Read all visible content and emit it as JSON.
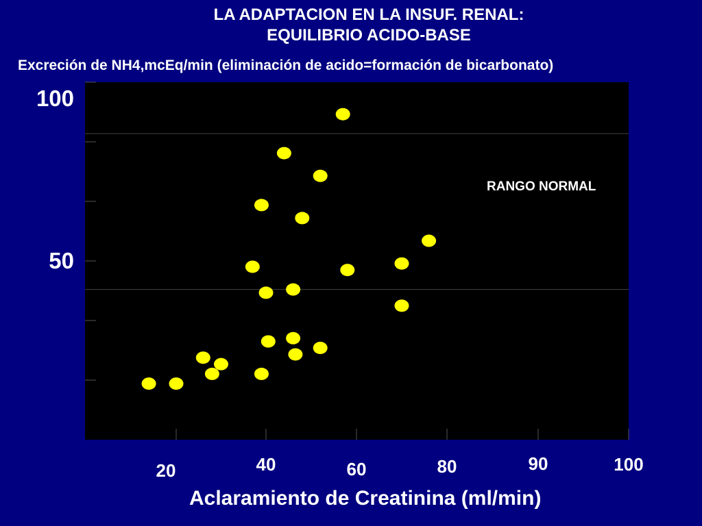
{
  "title_line1": "LA ADAPTACION EN LA INSUF. RENAL:",
  "title_line2": "EQUILIBRIO ACIDO-BASE",
  "subtitle": "Excreción de NH4,mcEq/min (eliminación de acido=formación de bicarbonato)",
  "chart_data": {
    "type": "scatter",
    "xlabel": "Aclaramiento de Creatinina (ml/min)",
    "ylabel": "Excreción de NH4,mcEq/min (eliminación de acido=formación de bicarbonato)",
    "x_ticks": [
      {
        "label": "20",
        "value": 20
      },
      {
        "label": "40",
        "value": 40
      },
      {
        "label": "60",
        "value": 60
      },
      {
        "label": "80",
        "value": 80
      },
      {
        "label": "90",
        "value": 90
      },
      {
        "label": "100",
        "value": 100
      }
    ],
    "y_ticks": [
      {
        "label": "100",
        "value": 100
      },
      {
        "label": "50",
        "value": 50
      }
    ],
    "annotation": "RANGO NORMAL",
    "normal_range": [
      41,
      89
    ],
    "points": [
      {
        "x": 14,
        "y": 12
      },
      {
        "x": 20,
        "y": 12
      },
      {
        "x": 26,
        "y": 20
      },
      {
        "x": 28,
        "y": 15
      },
      {
        "x": 30,
        "y": 18
      },
      {
        "x": 37,
        "y": 48
      },
      {
        "x": 39,
        "y": 15
      },
      {
        "x": 39,
        "y": 67
      },
      {
        "x": 40,
        "y": 40
      },
      {
        "x": 40.5,
        "y": 25
      },
      {
        "x": 44,
        "y": 83
      },
      {
        "x": 46,
        "y": 41
      },
      {
        "x": 46,
        "y": 26
      },
      {
        "x": 46.5,
        "y": 21
      },
      {
        "x": 48,
        "y": 63
      },
      {
        "x": 52,
        "y": 76
      },
      {
        "x": 52,
        "y": 23
      },
      {
        "x": 57,
        "y": 95
      },
      {
        "x": 58,
        "y": 47
      },
      {
        "x": 70,
        "y": 49
      },
      {
        "x": 70,
        "y": 36
      },
      {
        "x": 76,
        "y": 56
      }
    ]
  },
  "colors": {
    "background": "#000080",
    "plot_area": "#000000",
    "point": "#ffff00",
    "text": "#ffffff"
  }
}
